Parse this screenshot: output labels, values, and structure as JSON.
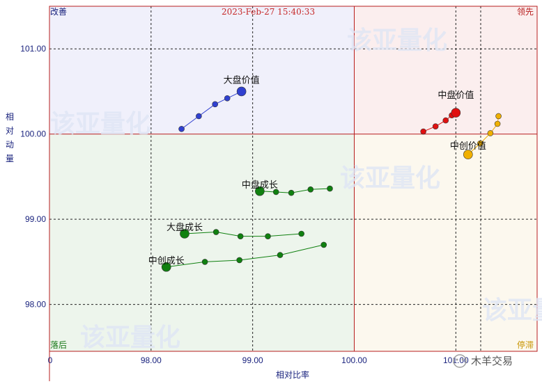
{
  "chart_data": {
    "type": "scatter",
    "timestamp": "2023-Feb-27 15:40:33",
    "xlabel": "相对比率",
    "ylabel": "相对动量",
    "xlim": [
      97.0,
      101.8
    ],
    "ylim": [
      97.45,
      101.5
    ],
    "x_ticks": [
      "0",
      "98.00",
      "99.00",
      "100.00",
      "101.00"
    ],
    "y_ticks": [
      "101.00",
      "100.00",
      "99.00",
      "98.00"
    ],
    "grid": true,
    "center": [
      100.0,
      100.0
    ],
    "quadrants": {
      "top_left": "改善",
      "top_right": "领先",
      "bottom_left": "落后",
      "bottom_right": "停滞"
    },
    "quadrant_colors": {
      "top_left": "#f0f0fb",
      "top_right": "#fbeeee",
      "bottom_left": "#edf5ec",
      "bottom_right": "#fcf8ee"
    },
    "series": [
      {
        "name": "大盘价值",
        "color": "#3040d0",
        "x": [
          98.3,
          98.47,
          98.63,
          98.75,
          98.89
        ],
        "y": [
          100.06,
          100.21,
          100.35,
          100.42,
          100.5
        ]
      },
      {
        "name": "中盘价值",
        "color": "#e01010",
        "x": [
          100.68,
          100.8,
          100.9,
          100.96,
          101.0
        ],
        "y": [
          100.03,
          100.09,
          100.16,
          100.22,
          100.25
        ]
      },
      {
        "name": "中创价值",
        "color": "#f0b000",
        "x": [
          101.42,
          101.41,
          101.34,
          101.24,
          101.12
        ],
        "y": [
          100.21,
          100.12,
          100.01,
          99.89,
          99.76
        ]
      },
      {
        "name": "中盘成长",
        "color": "#108010",
        "x": [
          99.76,
          99.57,
          99.38,
          99.23,
          99.07
        ],
        "y": [
          99.36,
          99.35,
          99.31,
          99.32,
          99.33
        ]
      },
      {
        "name": "大盘成长",
        "color": "#108010",
        "x": [
          99.48,
          99.15,
          98.88,
          98.64,
          98.33
        ],
        "y": [
          98.83,
          98.8,
          98.8,
          98.85,
          98.83
        ]
      },
      {
        "name": "中创成长",
        "color": "#108010",
        "x": [
          99.7,
          99.27,
          98.87,
          98.53,
          98.15
        ],
        "y": [
          98.7,
          98.58,
          98.52,
          98.5,
          98.44
        ]
      }
    ]
  },
  "watermark_text": "该亚量化",
  "brand_text": "木羊交易"
}
